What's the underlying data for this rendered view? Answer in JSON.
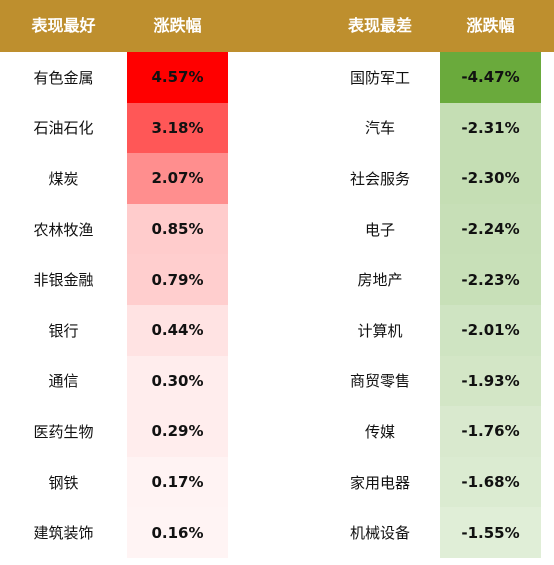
{
  "header": {
    "best_label": "表现最好",
    "best_change_label": "涨跌幅",
    "worst_label": "表现最差",
    "worst_change_label": "涨跌幅"
  },
  "best": [
    {
      "name": "有色金属",
      "value": "4.57%",
      "color": "#ff0000"
    },
    {
      "name": "石油石化",
      "value": "3.18%",
      "color": "#ff5757"
    },
    {
      "name": "煤炭",
      "value": "2.07%",
      "color": "#ff8e8e"
    },
    {
      "name": "农林牧渔",
      "value": "0.85%",
      "color": "#ffcccc"
    },
    {
      "name": "非银金融",
      "value": "0.79%",
      "color": "#ffcece"
    },
    {
      "name": "银行",
      "value": "0.44%",
      "color": "#ffe3e3"
    },
    {
      "name": "通信",
      "value": "0.30%",
      "color": "#ffeded"
    },
    {
      "name": "医药生物",
      "value": "0.29%",
      "color": "#ffeded"
    },
    {
      "name": "钢铁",
      "value": "0.17%",
      "color": "#fff3f3"
    },
    {
      "name": "建筑装饰",
      "value": "0.16%",
      "color": "#fff4f4"
    }
  ],
  "worst": [
    {
      "name": "国防军工",
      "value": "-4.47%",
      "color": "#6aaa3c"
    },
    {
      "name": "汽车",
      "value": "-2.31%",
      "color": "#c5deb4"
    },
    {
      "name": "社会服务",
      "value": "-2.30%",
      "color": "#c5deb4"
    },
    {
      "name": "电子",
      "value": "-2.24%",
      "color": "#c7dfb7"
    },
    {
      "name": "房地产",
      "value": "-2.23%",
      "color": "#c8e0b8"
    },
    {
      "name": "计算机",
      "value": "-2.01%",
      "color": "#cfe4c2"
    },
    {
      "name": "商贸零售",
      "value": "-1.93%",
      "color": "#d3e6c6"
    },
    {
      "name": "传媒",
      "value": "-1.76%",
      "color": "#d9e9ce"
    },
    {
      "name": "家用电器",
      "value": "-1.68%",
      "color": "#dbebd1"
    },
    {
      "name": "机械设备",
      "value": "-1.55%",
      "color": "#e0eed7"
    }
  ]
}
